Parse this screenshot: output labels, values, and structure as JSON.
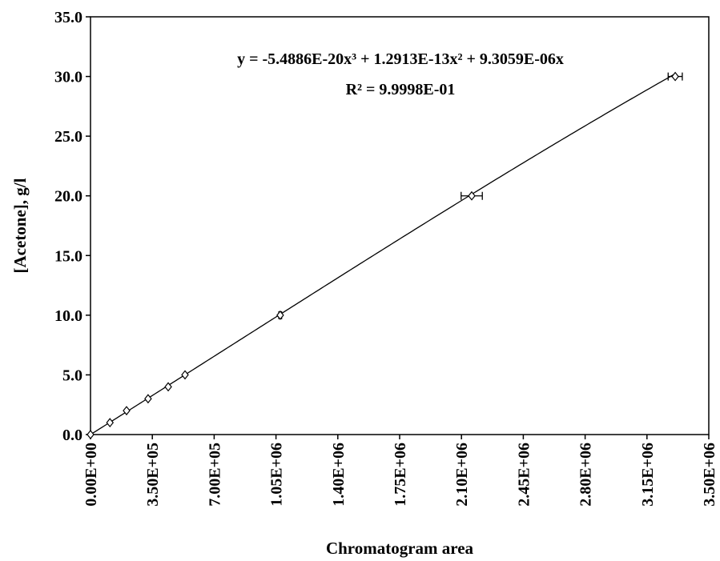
{
  "chart_data": {
    "type": "scatter",
    "x_label": "Chromatogram area",
    "y_label": "[Acetone], g/l",
    "series": [
      {
        "color": "#000000",
        "x": [
          0,
          110000,
          204000,
          326000,
          440000,
          535000,
          1074000,
          2158000,
          3310000
        ],
        "y": [
          0,
          1,
          2,
          3,
          4,
          5,
          10,
          20,
          30
        ],
        "x_error": [
          0,
          0,
          0,
          0,
          0,
          0,
          8000,
          60000,
          40000
        ]
      }
    ],
    "trendline": {
      "coefficients": [
        9.3059e-06,
        1.2913e-13,
        -5.4886e-20
      ],
      "equation": "y = -5.4886E-20x³ + 1.2913E-13x² + 9.3059E-06x",
      "r_squared": 0.99998,
      "r_squared_label": "R² = 9.9998E-01"
    },
    "xlim": [
      0,
      3500000
    ],
    "ylim": [
      0,
      35
    ],
    "xticks": [
      {
        "value": 0,
        "label": "0.00E+00"
      },
      {
        "value": 350000,
        "label": "3.50E+05"
      },
      {
        "value": 700000,
        "label": "7.00E+05"
      },
      {
        "value": 1050000,
        "label": "1.05E+06"
      },
      {
        "value": 1400000,
        "label": "1.40E+06"
      },
      {
        "value": 1750000,
        "label": "1.75E+06"
      },
      {
        "value": 2100000,
        "label": "2.10E+06"
      },
      {
        "value": 2450000,
        "label": "2.45E+06"
      },
      {
        "value": 2800000,
        "label": "2.80E+06"
      },
      {
        "value": 3150000,
        "label": "3.15E+06"
      },
      {
        "value": 3500000,
        "label": "3.50E+06"
      }
    ],
    "yticks": [
      {
        "value": 0,
        "label": "0.0"
      },
      {
        "value": 5,
        "label": "5.0"
      },
      {
        "value": 10,
        "label": "10.0"
      },
      {
        "value": 15,
        "label": "15.0"
      },
      {
        "value": 20,
        "label": "20.0"
      },
      {
        "value": 25,
        "label": "25.0"
      },
      {
        "value": 30,
        "label": "30.0"
      },
      {
        "value": 35,
        "label": "35.0"
      }
    ]
  }
}
